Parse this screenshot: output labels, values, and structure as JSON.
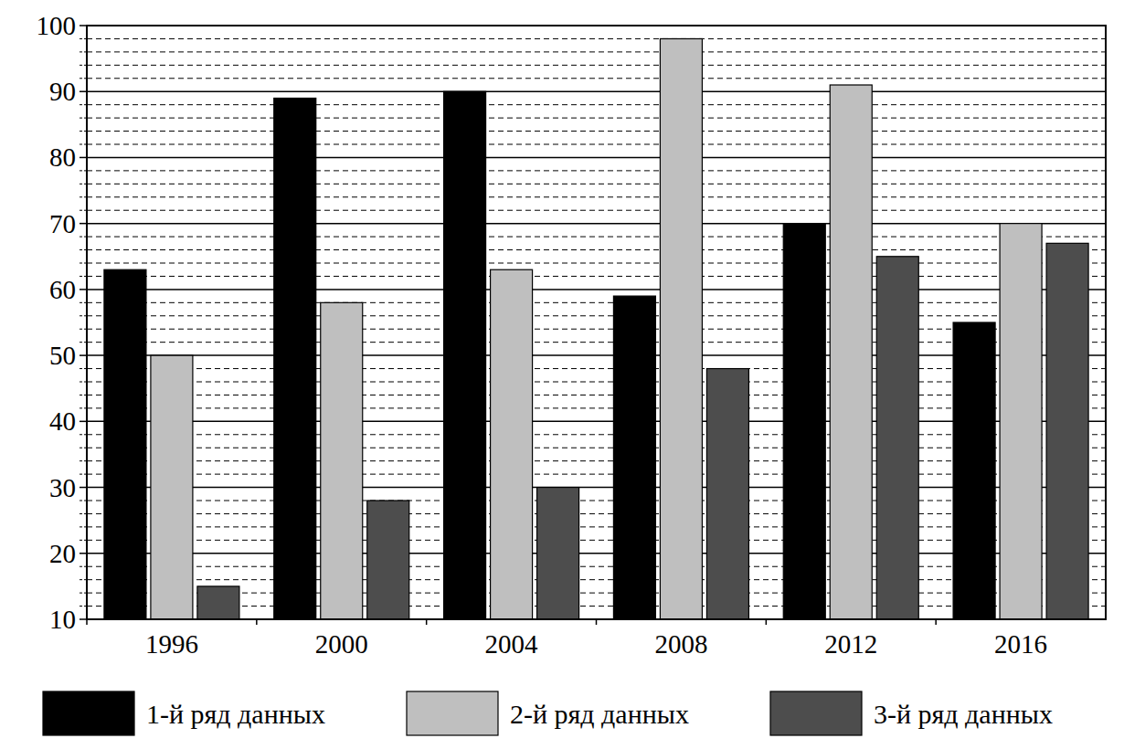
{
  "chart_data": {
    "type": "bar",
    "categories": [
      "1996",
      "2000",
      "2004",
      "2008",
      "2012",
      "2016"
    ],
    "series": [
      {
        "name": "1-й ряд данных",
        "color": "#000000",
        "values": [
          63,
          89,
          90,
          59,
          70,
          55
        ]
      },
      {
        "name": "2-й ряд данных",
        "color": "#bfbfbf",
        "values": [
          50,
          58,
          63,
          98,
          91,
          70
        ]
      },
      {
        "name": "3-й ряд данных",
        "color": "#4d4d4d",
        "values": [
          15,
          28,
          30,
          48,
          65,
          67
        ]
      }
    ],
    "ylim": [
      10,
      100
    ],
    "yticks": [
      10,
      20,
      30,
      40,
      50,
      60,
      70,
      80,
      90,
      100
    ],
    "grid": true,
    "legend": "bottom"
  }
}
